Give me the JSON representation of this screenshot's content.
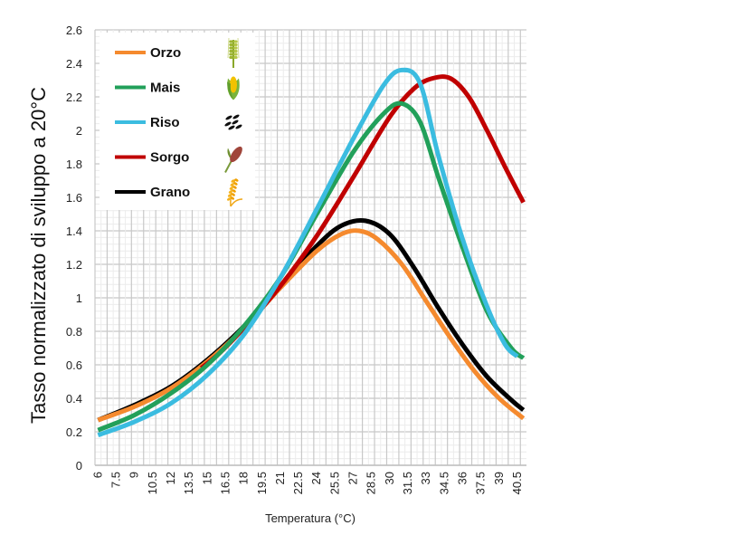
{
  "chart_data": {
    "type": "line",
    "title": "",
    "xlabel": "Temperatura (°C)",
    "ylabel": "Tasso normalizzato di sviluppo a 20°C",
    "xlim": [
      5.75,
      41.25
    ],
    "ylim": [
      0,
      2.6
    ],
    "grid": true,
    "legend_position": "top-left",
    "x_tick_labels": [
      "6",
      "7.5",
      "9",
      "10.5",
      "12",
      "13.5",
      "15",
      "16.5",
      "18",
      "19.5",
      "21",
      "22.5",
      "24",
      "25.5",
      "27",
      "28.5",
      "30",
      "31.5",
      "33",
      "34.5",
      "36",
      "37.5",
      "39",
      "40.5"
    ],
    "y_tick_labels": [
      "0",
      "0.2",
      "0.4",
      "0.6",
      "0.8",
      "1",
      "1.2",
      "1.4",
      "1.6",
      "1.8",
      "2",
      "2.2",
      "2.4",
      "2.6"
    ],
    "series": [
      {
        "name": "Orzo",
        "color": "#F58A2E",
        "icon": "barley-icon",
        "x": [
          6,
          9,
          12,
          15,
          18,
          21,
          24,
          26,
          27.5,
          29,
          31,
          33,
          35,
          37,
          39,
          41
        ],
        "y": [
          0.27,
          0.35,
          0.46,
          0.62,
          0.82,
          1.06,
          1.28,
          1.38,
          1.4,
          1.35,
          1.2,
          0.98,
          0.76,
          0.56,
          0.4,
          0.28
        ]
      },
      {
        "name": "Mais",
        "color": "#22A05A",
        "icon": "corn-icon",
        "x": [
          6,
          9,
          12,
          15,
          18,
          21,
          24,
          27,
          29.5,
          31,
          32.5,
          34,
          36,
          38,
          40,
          41
        ],
        "y": [
          0.21,
          0.3,
          0.43,
          0.6,
          0.83,
          1.12,
          1.5,
          1.87,
          2.1,
          2.16,
          2.05,
          1.72,
          1.3,
          0.92,
          0.7,
          0.64
        ]
      },
      {
        "name": "Riso",
        "color": "#3BBCE0",
        "icon": "rice-icon",
        "x": [
          6,
          9,
          12,
          15,
          18,
          21,
          24,
          27,
          29.5,
          31,
          32.5,
          34,
          36,
          38,
          39.5,
          40.5
        ],
        "y": [
          0.18,
          0.26,
          0.37,
          0.54,
          0.78,
          1.12,
          1.53,
          1.95,
          2.27,
          2.36,
          2.28,
          1.85,
          1.35,
          0.95,
          0.72,
          0.65
        ]
      },
      {
        "name": "Sorgo",
        "color": "#C00000",
        "icon": "sorghum-icon",
        "x": [
          14.5,
          16,
          18,
          21,
          24,
          27,
          30,
          32,
          33.5,
          35,
          36.5,
          38,
          39.5,
          41
        ],
        "y": [
          0.58,
          0.67,
          0.82,
          1.07,
          1.37,
          1.72,
          2.08,
          2.25,
          2.31,
          2.31,
          2.2,
          2.0,
          1.78,
          1.57
        ]
      },
      {
        "name": "Grano",
        "color": "#000000",
        "icon": "wheat-icon",
        "x": [
          6,
          9,
          12,
          15,
          18,
          21,
          24,
          26,
          28,
          30,
          32,
          34,
          36,
          38,
          40,
          41
        ],
        "y": [
          0.27,
          0.36,
          0.47,
          0.63,
          0.83,
          1.07,
          1.31,
          1.43,
          1.46,
          1.38,
          1.18,
          0.94,
          0.72,
          0.53,
          0.39,
          0.33
        ]
      }
    ]
  }
}
